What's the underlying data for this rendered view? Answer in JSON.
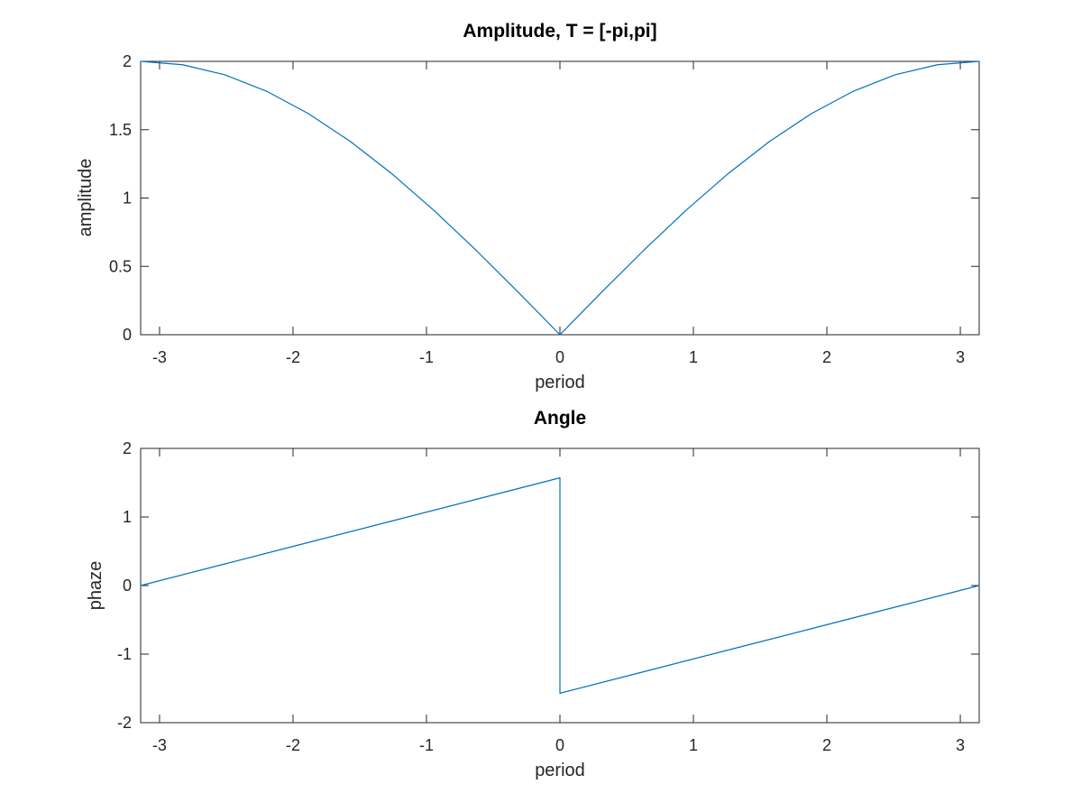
{
  "chart_data": [
    {
      "type": "line",
      "title": "Amplitude, T = [-pi,pi]",
      "xlabel": "period",
      "ylabel": "amplitude",
      "xlim": [
        -3.14159,
        3.14159
      ],
      "ylim": [
        0,
        2
      ],
      "xticks": [
        -3,
        -2,
        -1,
        0,
        1,
        2,
        3
      ],
      "xtick_labels": [
        "-3",
        "-2",
        "-1",
        "0",
        "1",
        "2",
        "3"
      ],
      "yticks": [
        0,
        0.5,
        1,
        1.5,
        2
      ],
      "ytick_labels": [
        "0",
        "0.5",
        "1",
        "1.5",
        "2"
      ],
      "grid": false,
      "color": "#0072bd",
      "series": [
        {
          "x": [
            -3.1416,
            -2.8274,
            -2.5133,
            -2.1991,
            -1.885,
            -1.5708,
            -1.2566,
            -0.9425,
            -0.6283,
            -0.3142,
            0,
            0.3142,
            0.6283,
            0.9425,
            1.2566,
            1.5708,
            1.885,
            2.1991,
            2.5133,
            2.8274,
            3.1416
          ],
          "y": [
            2.0,
            1.9754,
            1.9021,
            1.782,
            1.618,
            1.4142,
            1.1756,
            0.908,
            0.618,
            0.3129,
            0.0,
            0.3129,
            0.618,
            0.908,
            1.1756,
            1.4142,
            1.618,
            1.782,
            1.9021,
            1.9754,
            2.0
          ]
        }
      ]
    },
    {
      "type": "line",
      "title": "Angle",
      "xlabel": "period",
      "ylabel": "phaze",
      "xlim": [
        -3.14159,
        3.14159
      ],
      "ylim": [
        -2,
        2
      ],
      "xticks": [
        -3,
        -2,
        -1,
        0,
        1,
        2,
        3
      ],
      "xtick_labels": [
        "-3",
        "-2",
        "-1",
        "0",
        "1",
        "2",
        "3"
      ],
      "yticks": [
        -2,
        -1,
        0,
        1,
        2
      ],
      "ytick_labels": [
        "-2",
        "-1",
        "0",
        "1",
        "2"
      ],
      "grid": false,
      "color": "#0072bd",
      "series": [
        {
          "x": [
            -3.1416,
            -2.5133,
            -1.885,
            -1.2566,
            -0.6283,
            0,
            0.0001,
            0.6283,
            1.2566,
            1.885,
            2.5133,
            3.1416
          ],
          "y": [
            0.0,
            0.3142,
            0.6283,
            0.9425,
            1.2566,
            1.5708,
            -1.5708,
            -1.2566,
            -0.9425,
            -0.6283,
            -0.3142,
            0.0
          ]
        }
      ]
    }
  ]
}
